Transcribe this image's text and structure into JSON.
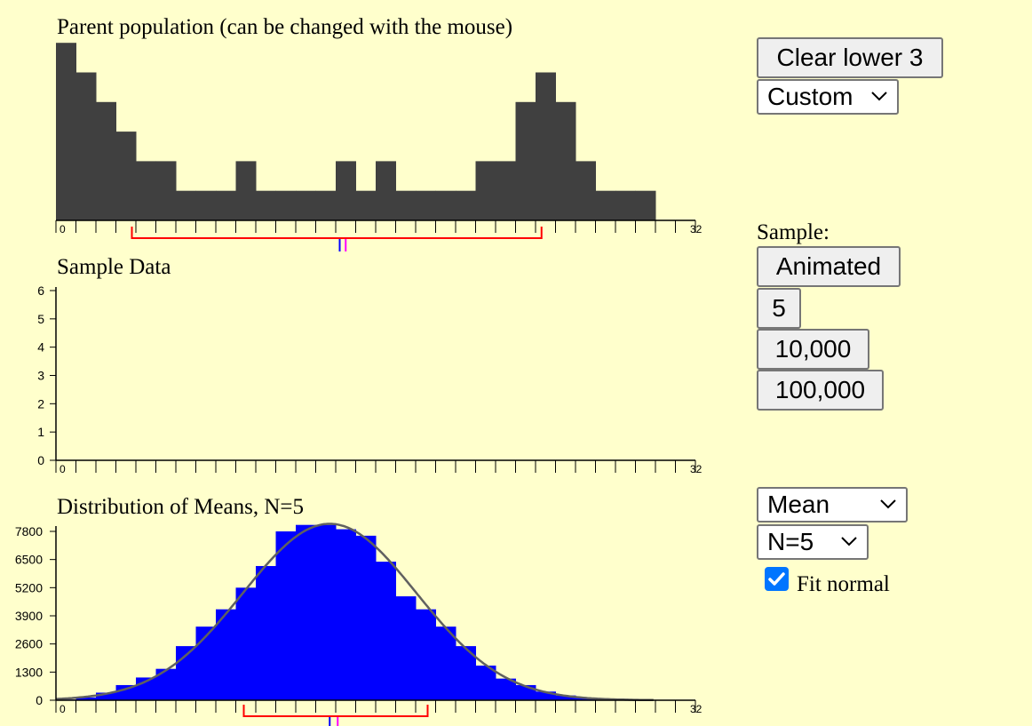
{
  "panels": {
    "parent_title": "Parent population (can be changed with the mouse)",
    "sample_title": "Sample Data",
    "means_title": "Distribution of Means, N=5"
  },
  "controls": {
    "clear_button": "Clear lower 3",
    "distribution_select": "Custom",
    "sample_label": "Sample:",
    "animated_button": "Animated",
    "sample_5_button": "5",
    "sample_10000_button": "10,000",
    "sample_100000_button": "100,000",
    "statistic_select": "Mean",
    "n_select": "N=5",
    "fit_normal_label": "Fit normal",
    "fit_normal_checked": true
  },
  "colors": {
    "background": "#ffffcc",
    "population_bar": "#404040",
    "means_bar": "#0000ff",
    "fit_curve": "#606060",
    "sd_bracket": "#ff0000",
    "mean_marker_blue": "#0000ff",
    "median_marker_pink": "#ff00ff"
  },
  "chart_data": [
    {
      "name": "parent-population",
      "type": "bar",
      "x_min_label": "0",
      "x_max_label": "32",
      "x": [
        0,
        1,
        2,
        3,
        4,
        5,
        6,
        7,
        8,
        9,
        10,
        11,
        12,
        13,
        14,
        15,
        16,
        17,
        18,
        19,
        20,
        21,
        22,
        23,
        24,
        25,
        26,
        27,
        28,
        29,
        30
      ],
      "values": [
        6,
        5,
        4,
        3,
        2,
        2,
        1,
        1,
        1,
        2,
        1,
        1,
        1,
        1,
        2,
        1,
        2,
        1,
        1,
        1,
        1,
        2,
        2,
        4,
        5,
        4,
        2,
        1,
        1,
        1,
        0
      ],
      "sd_bracket": [
        3.8,
        24.3
      ],
      "mean": 14.2,
      "median": 14.5
    },
    {
      "name": "sample-data",
      "type": "bar",
      "x_min_label": "0",
      "x_max_label": "32",
      "y_ticks": [
        "0",
        "1",
        "2",
        "3",
        "4",
        "5",
        "6"
      ],
      "ylim": [
        0,
        6
      ],
      "values": []
    },
    {
      "name": "distribution-of-means",
      "type": "bar",
      "x_min_label": "0",
      "x_max_label": "32",
      "y_ticks": [
        "0",
        "1300",
        "2600",
        "3900",
        "5200",
        "6500",
        "7800"
      ],
      "ylim": [
        0,
        8200
      ],
      "x": [
        0,
        1,
        2,
        3,
        4,
        5,
        6,
        7,
        8,
        9,
        10,
        11,
        12,
        13,
        14,
        15,
        16,
        17,
        18,
        19,
        20,
        21,
        22,
        23,
        24,
        25,
        26,
        27,
        28,
        29,
        30
      ],
      "values": [
        30,
        130,
        350,
        700,
        1050,
        1450,
        2500,
        3400,
        4200,
        5200,
        6200,
        7800,
        8100,
        8100,
        7900,
        7600,
        6400,
        4800,
        4200,
        3400,
        2500,
        1600,
        1000,
        700,
        400,
        220,
        120,
        60,
        20,
        0,
        0
      ],
      "fit_normal": {
        "mean": 13.7,
        "sd": 4.35,
        "peak": 8150
      },
      "sd_bracket": [
        9.4,
        18.6
      ],
      "mean": 13.7,
      "median": 14.1
    }
  ]
}
